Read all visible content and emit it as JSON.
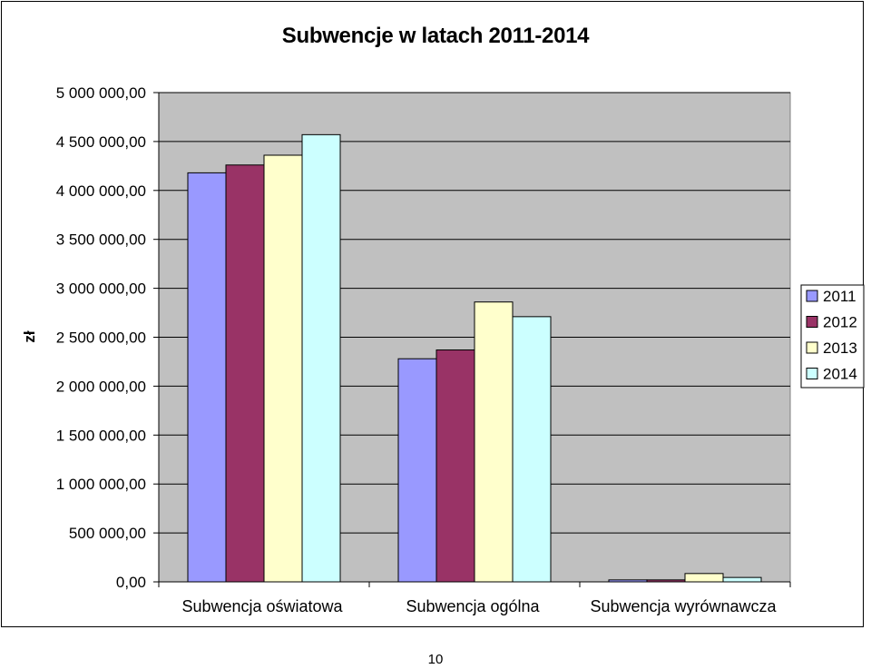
{
  "chart_data": {
    "type": "bar",
    "title": "Subwencje w latach 2011-2014",
    "xlabel": "",
    "ylabel": "zł",
    "ylim": [
      0,
      5000000
    ],
    "ytick_step": 500000,
    "ytick_labels": [
      "0,00",
      "500 000,00",
      "1 000 000,00",
      "1 500 000,00",
      "2 000 000,00",
      "2 500 000,00",
      "3 000 000,00",
      "3 500 000,00",
      "4 000 000,00",
      "4 500 000,00",
      "5 000 000,00"
    ],
    "categories": [
      "Subwencja oświatowa",
      "Subwencja ogólna",
      "Subwencja wyrównawcza"
    ],
    "series": [
      {
        "name": "2011",
        "color": "#9999FF",
        "values": [
          4180000,
          2280000,
          20000
        ]
      },
      {
        "name": "2012",
        "color": "#993366",
        "values": [
          4260000,
          2370000,
          20000
        ]
      },
      {
        "name": "2013",
        "color": "#FFFFCC",
        "values": [
          4360000,
          2860000,
          85000
        ]
      },
      {
        "name": "2014",
        "color": "#CCFFFF",
        "values": [
          4570000,
          2710000,
          45000
        ]
      }
    ],
    "grid": true,
    "legend_position": "right",
    "plot_background": "#C0C0C0"
  },
  "page": {
    "number": "10"
  }
}
